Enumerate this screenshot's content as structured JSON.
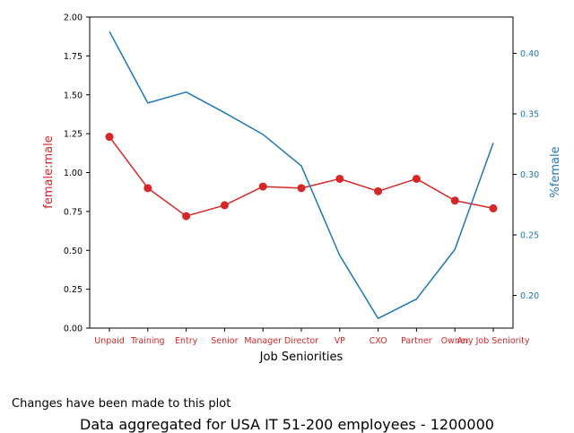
{
  "note": "Changes have been made to this plot",
  "caption": "Data aggregated for USA IT 51-200 employees - 1200000",
  "colors": {
    "left": "#d62728",
    "right": "#1f77b4",
    "axis": "#000000"
  },
  "chart_data": {
    "type": "line",
    "xlabel": "Job Seniorities",
    "categories": [
      "Unpaid",
      "Training",
      "Entry",
      "Senior",
      "Manager",
      "Director",
      "VP",
      "CXO",
      "Partner",
      "Owner",
      "Any Job Seniority"
    ],
    "y_left": {
      "label": "female:male",
      "lim": [
        0,
        2.0
      ],
      "ticks": [
        "0.00",
        "0.25",
        "0.50",
        "0.75",
        "1.00",
        "1.25",
        "1.50",
        "1.75",
        "2.00"
      ]
    },
    "y_right": {
      "label": "%female",
      "lim": [
        0.173,
        0.43
      ],
      "ticks": [
        "0.20",
        "0.25",
        "0.30",
        "0.35",
        "0.40"
      ]
    },
    "series": [
      {
        "axis": "left",
        "marker": "circle",
        "values": [
          1.23,
          0.9,
          0.72,
          0.79,
          0.91,
          0.9,
          0.96,
          0.88,
          0.96,
          0.82,
          0.77
        ]
      },
      {
        "axis": "right",
        "marker": "none",
        "values": [
          0.418,
          0.359,
          0.368,
          0.351,
          0.333,
          0.307,
          0.233,
          0.181,
          0.197,
          0.238,
          0.326
        ]
      }
    ]
  }
}
